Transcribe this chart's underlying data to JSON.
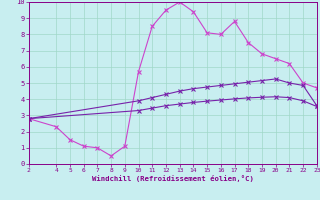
{
  "title": "",
  "xlabel": "Windchill (Refroidissement éolien,°C)",
  "background_color": "#c8eef0",
  "grid_color": "#a0d8c8",
  "line_color1": "#cc44cc",
  "line_color2": "#7722aa",
  "xlim": [
    2,
    23
  ],
  "ylim": [
    0,
    10
  ],
  "xticks": [
    2,
    4,
    5,
    6,
    7,
    8,
    9,
    10,
    11,
    12,
    13,
    14,
    15,
    16,
    17,
    18,
    19,
    20,
    21,
    22,
    23
  ],
  "yticks": [
    0,
    1,
    2,
    3,
    4,
    5,
    6,
    7,
    8,
    9,
    10
  ],
  "line1_x": [
    2,
    4,
    5,
    6,
    7,
    8,
    9,
    10,
    11,
    12,
    13,
    14,
    15,
    16,
    17,
    18,
    19,
    20,
    21,
    22,
    23
  ],
  "line1_y": [
    2.8,
    2.3,
    1.5,
    1.1,
    1.0,
    0.5,
    1.1,
    5.7,
    8.5,
    9.5,
    10.0,
    9.4,
    8.1,
    8.0,
    8.8,
    7.5,
    6.8,
    6.5,
    6.2,
    5.0,
    4.7
  ],
  "line2_x": [
    2,
    10,
    11,
    12,
    13,
    14,
    15,
    16,
    17,
    18,
    19,
    20,
    21,
    22,
    23
  ],
  "line2_y": [
    2.8,
    3.9,
    4.1,
    4.3,
    4.5,
    4.65,
    4.75,
    4.85,
    4.95,
    5.05,
    5.15,
    5.25,
    5.0,
    4.85,
    3.6
  ],
  "line3_x": [
    2,
    10,
    11,
    12,
    13,
    14,
    15,
    16,
    17,
    18,
    19,
    20,
    21,
    22,
    23
  ],
  "line3_y": [
    2.8,
    3.3,
    3.45,
    3.6,
    3.7,
    3.8,
    3.88,
    3.95,
    4.02,
    4.08,
    4.12,
    4.15,
    4.1,
    3.9,
    3.55
  ],
  "label_color": "#880088",
  "spine_color": "#880088"
}
